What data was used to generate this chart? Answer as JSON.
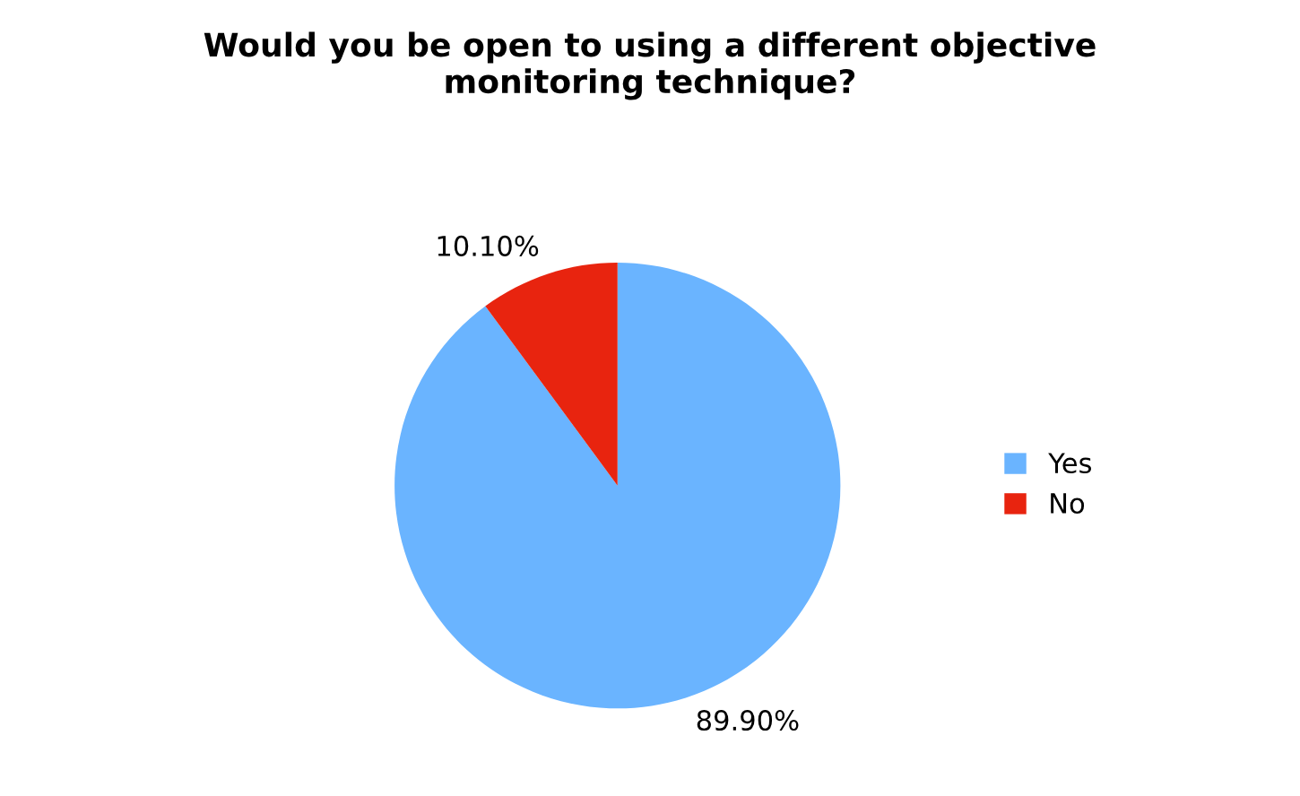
{
  "chart_data": {
    "type": "pie",
    "title": "Would you be open to using a different objective\nmonitoring technique?",
    "categories": [
      "Yes",
      "No"
    ],
    "values": [
      89.9,
      10.1
    ],
    "value_labels": [
      "89.90%",
      "10.10%"
    ],
    "colors": [
      "#6ab4ff",
      "#e8240f"
    ],
    "legend": "right"
  }
}
